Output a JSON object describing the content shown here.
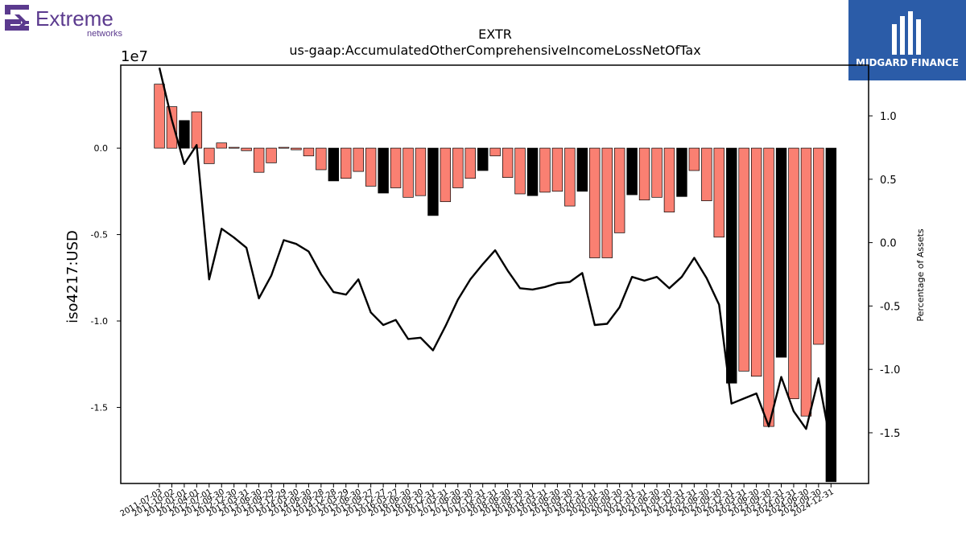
{
  "logos": {
    "company_name": "Extreme",
    "company_sub": "networks",
    "sponsor": "MIDGARD FINANCE"
  },
  "colors": {
    "bar_positive": "#fa8072",
    "bar_highlight": "#000000",
    "line": "#000000",
    "brand_purple": "#5b3a8e",
    "sponsor_bg": "#2b5ca8"
  },
  "chart_data": {
    "type": "bar",
    "title": "EXTR",
    "subtitle": "us-gaap:AccumulatedOtherComprehensiveIncomeLossNetOfTax",
    "ylabel": "iso4217:USD",
    "y_offset_label": "1e7",
    "y2label": "Percentage of Assets",
    "ylim": [
      -1.94,
      0.48
    ],
    "y2lim": [
      -1.9,
      1.4
    ],
    "yticks": [
      "0.0",
      "-0.5",
      "-1.0",
      "-1.5"
    ],
    "y2ticks": [
      "1.0",
      "0.5",
      "0.0",
      "-0.5",
      "-1.0",
      "-1.5"
    ],
    "grid": false,
    "categories": [
      "2011-07-03",
      "2011-10-02",
      "2012-01-01",
      "2012-04-01",
      "2012-07-01",
      "2012-09-30",
      "2012-12-30",
      "2013-03-31",
      "2013-06-30",
      "2013-09-29",
      "2013-12-29",
      "2014-03-30",
      "2014-06-30",
      "2014-09-28",
      "2014-12-28",
      "2015-03-29",
      "2015-06-30",
      "2015-09-27",
      "2015-12-27",
      "2016-03-27",
      "2016-06-30",
      "2016-09-30",
      "2016-12-31",
      "2017-03-31",
      "2017-06-30",
      "2017-09-30",
      "2017-12-31",
      "2018-03-31",
      "2018-06-30",
      "2018-09-30",
      "2018-12-31",
      "2019-03-31",
      "2019-06-30",
      "2019-09-30",
      "2019-12-31",
      "2020-03-31",
      "2020-06-30",
      "2020-09-30",
      "2020-12-31",
      "2021-03-31",
      "2021-06-30",
      "2021-09-30",
      "2021-12-31",
      "2022-03-31",
      "2022-06-30",
      "2022-09-30",
      "2022-12-31",
      "2023-03-31",
      "2023-06-30",
      "2023-09-30",
      "2023-12-31",
      "2024-03-31",
      "2024-06-30",
      "2024-09-30",
      "2024-12-31"
    ],
    "xtick_labels": [
      "2011-07-03",
      "2011-10-02",
      "2012-01-01",
      "2012-04-01",
      "2012-07-01",
      "2012-09-30",
      "2012-12-30",
      "2013-03-31",
      "2013-06-30",
      "2013-09-29",
      "2013-12-29",
      "2014-03-30",
      "2014-06-30",
      "2014-09-28",
      "2014-12-28",
      "2015-03-29",
      "2015-06-30",
      "2015-09-27",
      "2015-12-27",
      "2016-03-27",
      "2016-06-30",
      "2016-09-30",
      "2016-12-31",
      "2017-03-31",
      "2017-06-30",
      "2017-09-30",
      "2017-12-31",
      "2018-03-31",
      "2018-06-30",
      "2018-09-30",
      "2018-12-31",
      "2019-03-31",
      "2019-06-30",
      "2019-09-30",
      "2019-12-31",
      "2020-03-31",
      "2020-06-30",
      "2020-09-30",
      "2020-12-31",
      "2021-03-31",
      "2021-06-30",
      "2021-09-30",
      "2021-12-31",
      "2022-03-31",
      "2022-06-30",
      "2022-09-30",
      "2022-12-31",
      "2023-03-31",
      "2023-06-30",
      "2023-09-30",
      "2023-12-31",
      "2024-03-31",
      "2024-06-30",
      "2024-09-30",
      "2024-12-31"
    ],
    "series": [
      {
        "name": "",
        "type": "bar",
        "values": [
          0.37,
          0.24,
          0.16,
          0.21,
          -0.09,
          0.03,
          0.005,
          -0.015,
          -0.14,
          -0.085,
          0.005,
          -0.01,
          -0.045,
          -0.125,
          -0.19,
          -0.175,
          -0.135,
          -0.22,
          -0.26,
          -0.23,
          -0.285,
          -0.275,
          -0.39,
          -0.31,
          -0.23,
          -0.175,
          -0.13,
          -0.045,
          -0.17,
          -0.265,
          -0.275,
          -0.255,
          -0.25,
          -0.335,
          -0.25,
          -0.635,
          -0.635,
          -0.49,
          -0.27,
          -0.3,
          -0.285,
          -0.37,
          -0.28,
          -0.13,
          -0.305,
          -0.515,
          -1.36,
          -1.29,
          -1.32,
          -1.61,
          -1.21,
          -1.45,
          -1.55,
          -1.135,
          -1.93
        ],
        "highlight": [
          false,
          false,
          true,
          false,
          false,
          false,
          false,
          false,
          false,
          false,
          false,
          false,
          false,
          false,
          true,
          false,
          false,
          false,
          true,
          false,
          false,
          false,
          true,
          false,
          false,
          false,
          true,
          false,
          false,
          false,
          true,
          false,
          false,
          false,
          true,
          false,
          false,
          false,
          true,
          false,
          false,
          false,
          true,
          false,
          false,
          false,
          true,
          false,
          false,
          false,
          true,
          false,
          false,
          false,
          true
        ]
      },
      {
        "name": "",
        "type": "line",
        "axis": "y2",
        "values": [
          1.38,
          0.97,
          0.62,
          0.77,
          -0.29,
          0.11,
          0.04,
          -0.04,
          -0.44,
          -0.26,
          0.02,
          -0.01,
          -0.07,
          -0.25,
          -0.39,
          -0.41,
          -0.29,
          -0.55,
          -0.65,
          -0.61,
          -0.76,
          -0.75,
          -0.85,
          -0.66,
          -0.45,
          -0.29,
          -0.17,
          -0.06,
          -0.22,
          -0.36,
          -0.37,
          -0.35,
          -0.32,
          -0.31,
          -0.24,
          -0.65,
          -0.64,
          -0.51,
          -0.27,
          -0.3,
          -0.27,
          -0.36,
          -0.27,
          -0.12,
          -0.28,
          -0.49,
          -1.27,
          -1.23,
          -1.19,
          -1.45,
          -1.06,
          -1.33,
          -1.47,
          -1.07,
          -1.6
        ]
      }
    ]
  }
}
